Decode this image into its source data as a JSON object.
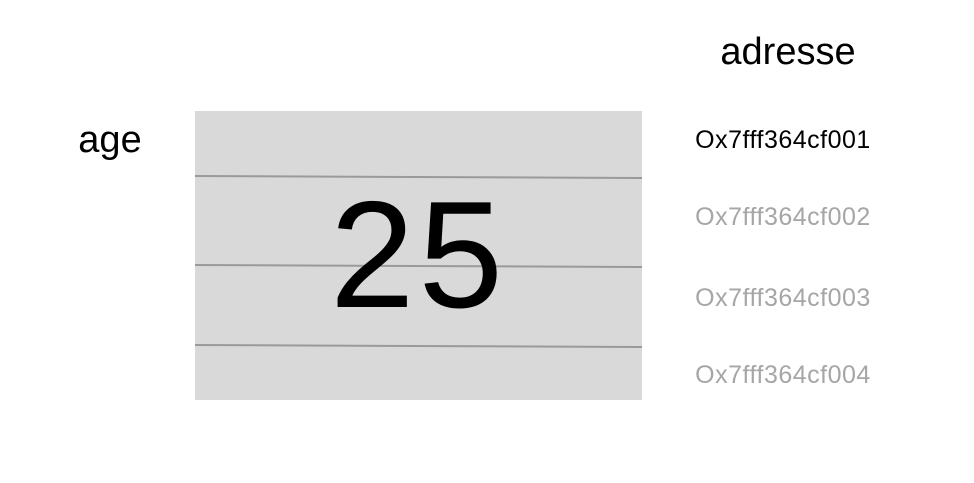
{
  "variable": {
    "name": "age",
    "value": "25"
  },
  "addresses": {
    "header": "adresse",
    "items": [
      {
        "label": "Ox7fff364cf001",
        "color": "#000000"
      },
      {
        "label": "Ox7fff364cf002",
        "color": "#a6a6a6"
      },
      {
        "label": "Ox7fff364cf003",
        "color": "#a6a6a6"
      },
      {
        "label": "Ox7fff364cf004",
        "color": "#a6a6a6"
      }
    ]
  },
  "colors": {
    "memory_fill": "#d9d9d9",
    "divider": "#9a9a9a",
    "text": "#000000",
    "inactive_text": "#a6a6a6"
  }
}
